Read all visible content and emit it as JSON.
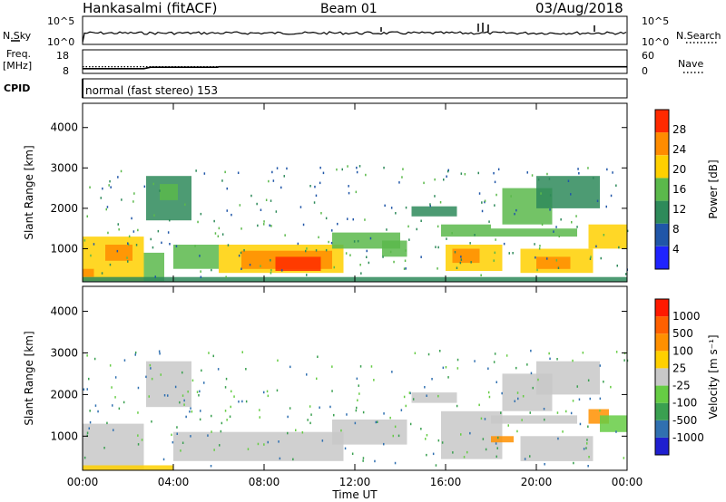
{
  "header": {
    "station": "Hankasalmi (fitACF)",
    "beam": "Beam 01",
    "date": "03/Aug/2018"
  },
  "side_labels": {
    "nsky": "N.Sky",
    "freq": "Freq.",
    "freq_unit": "[MHz]",
    "cpid": "CPID",
    "nsearch": "N.Search",
    "nave": "Nave"
  },
  "cpid_text": "normal (fast stereo) 153",
  "chart_data": [
    {
      "type": "line",
      "name": "noise",
      "y_tick_labels": [
        "10^5",
        "10^0"
      ],
      "right_tick_labels": [
        "10^5",
        "10^0"
      ],
      "series": [
        {
          "label": "N.Sky",
          "style": "solid"
        },
        {
          "label": "N.Search",
          "style": "dotted"
        }
      ]
    },
    {
      "type": "line",
      "name": "freq-nave",
      "left_tick_labels": [
        "18",
        "8"
      ],
      "right_tick_labels": [
        "60",
        "0"
      ],
      "x": [
        0,
        2.7,
        3.0,
        5.95,
        6.0,
        17.95,
        18.0,
        24
      ],
      "freq_mhz": [
        10.0,
        10.0,
        10.6,
        10.6,
        10.8,
        10.8,
        10.8,
        10.8
      ],
      "nave": [
        17,
        17,
        17,
        17,
        17,
        17,
        17,
        17
      ]
    },
    {
      "type": "heatmap",
      "name": "power",
      "ylabel": "Slant Range [km]",
      "ylim": [
        180,
        4600
      ],
      "yticks": [
        "1000",
        "2000",
        "3000",
        "4000"
      ],
      "xlim": [
        0,
        24
      ],
      "colorbar_label": "Power [dB]",
      "colorbar_ticks": [
        "4",
        "8",
        "12",
        "16",
        "20",
        "24",
        "28"
      ],
      "colors": [
        "#1f23ff",
        "#2056a8",
        "#2e8a5a",
        "#5bb94b",
        "#ffd000",
        "#ff8c00",
        "#ff2a00"
      ],
      "regions": [
        {
          "x0": 0.0,
          "x1": 2.7,
          "y0": 200,
          "y1": 1300,
          "level": 4
        },
        {
          "x0": 1.0,
          "x1": 2.2,
          "y0": 700,
          "y1": 1100,
          "level": 5
        },
        {
          "x0": 0.0,
          "x1": 0.5,
          "y0": 300,
          "y1": 500,
          "level": 5
        },
        {
          "x0": 2.7,
          "x1": 3.6,
          "y0": 200,
          "y1": 900,
          "level": 3
        },
        {
          "x0": 2.8,
          "x1": 4.8,
          "y0": 1700,
          "y1": 2800,
          "level": 2
        },
        {
          "x0": 3.4,
          "x1": 4.2,
          "y0": 2200,
          "y1": 2600,
          "level": 3
        },
        {
          "x0": 4.0,
          "x1": 6.0,
          "y0": 500,
          "y1": 1100,
          "level": 3
        },
        {
          "x0": 6.0,
          "x1": 11.5,
          "y0": 400,
          "y1": 1100,
          "level": 4
        },
        {
          "x0": 7.0,
          "x1": 11.0,
          "y0": 500,
          "y1": 950,
          "level": 5
        },
        {
          "x0": 8.5,
          "x1": 10.5,
          "y0": 450,
          "y1": 800,
          "level": 6
        },
        {
          "x0": 11.0,
          "x1": 14.0,
          "y0": 1000,
          "y1": 1400,
          "level": 3
        },
        {
          "x0": 13.2,
          "x1": 14.3,
          "y0": 800,
          "y1": 1200,
          "level": 3
        },
        {
          "x0": 14.5,
          "x1": 16.5,
          "y0": 1800,
          "y1": 2050,
          "level": 2
        },
        {
          "x0": 15.8,
          "x1": 18.0,
          "y0": 1300,
          "y1": 1600,
          "level": 3
        },
        {
          "x0": 16.0,
          "x1": 18.5,
          "y0": 450,
          "y1": 1100,
          "level": 4
        },
        {
          "x0": 16.3,
          "x1": 17.5,
          "y0": 650,
          "y1": 1000,
          "level": 5
        },
        {
          "x0": 18.0,
          "x1": 21.8,
          "y0": 1300,
          "y1": 1500,
          "level": 3
        },
        {
          "x0": 18.5,
          "x1": 20.7,
          "y0": 1600,
          "y1": 2500,
          "level": 3
        },
        {
          "x0": 20.0,
          "x1": 22.8,
          "y0": 2000,
          "y1": 2800,
          "level": 2
        },
        {
          "x0": 19.3,
          "x1": 22.5,
          "y0": 400,
          "y1": 1000,
          "level": 4
        },
        {
          "x0": 20.0,
          "x1": 21.5,
          "y0": 500,
          "y1": 800,
          "level": 5
        },
        {
          "x0": 22.3,
          "x1": 24.0,
          "y0": 1000,
          "y1": 1600,
          "level": 4
        },
        {
          "x0": 0.0,
          "x1": 24.0,
          "y0": 180,
          "y1": 300,
          "level": 2
        }
      ]
    },
    {
      "type": "heatmap",
      "name": "velocity",
      "ylabel": "Slant Range [km]",
      "ylim": [
        180,
        4600
      ],
      "yticks": [
        "1000",
        "2000",
        "3000",
        "4000"
      ],
      "xlim": [
        0,
        24
      ],
      "xticks": [
        "00:00",
        "04:00",
        "08:00",
        "12:00",
        "16:00",
        "20:00",
        "00:00"
      ],
      "xlabel": "Time UT",
      "colorbar_label": "Velocity [m s⁻¹]",
      "colorbar_ticks": [
        "1000",
        "500",
        "100",
        "25",
        "-25",
        "-100",
        "-500",
        "-1000"
      ],
      "colors": [
        "#1f1fd0",
        "#3070b0",
        "#3aa050",
        "#66cc44",
        "#c8c8c8",
        "#ffd000",
        "#ff9000",
        "#ff6000",
        "#ff1a00"
      ],
      "regions": [
        {
          "x0": 0.0,
          "x1": 2.7,
          "y0": 200,
          "y1": 1300,
          "level": 4
        },
        {
          "x0": 2.8,
          "x1": 4.8,
          "y0": 1700,
          "y1": 2800,
          "level": 4
        },
        {
          "x0": 4.0,
          "x1": 11.5,
          "y0": 400,
          "y1": 1100,
          "level": 4
        },
        {
          "x0": 11.0,
          "x1": 14.3,
          "y0": 800,
          "y1": 1400,
          "level": 4
        },
        {
          "x0": 14.5,
          "x1": 16.5,
          "y0": 1800,
          "y1": 2050,
          "level": 4
        },
        {
          "x0": 15.8,
          "x1": 18.5,
          "y0": 450,
          "y1": 1600,
          "level": 4
        },
        {
          "x0": 18.0,
          "x1": 21.8,
          "y0": 1300,
          "y1": 1500,
          "level": 4
        },
        {
          "x0": 18.5,
          "x1": 20.7,
          "y0": 1600,
          "y1": 2500,
          "level": 4
        },
        {
          "x0": 20.0,
          "x1": 22.8,
          "y0": 2000,
          "y1": 2800,
          "level": 4
        },
        {
          "x0": 19.3,
          "x1": 22.5,
          "y0": 400,
          "y1": 1000,
          "level": 4
        },
        {
          "x0": 18.0,
          "x1": 19.0,
          "y0": 850,
          "y1": 1000,
          "level": 6
        },
        {
          "x0": 22.3,
          "x1": 23.2,
          "y0": 1300,
          "y1": 1650,
          "level": 6
        },
        {
          "x0": 22.8,
          "x1": 24.0,
          "y0": 1100,
          "y1": 1500,
          "level": 3
        },
        {
          "x0": 0.0,
          "x1": 4.0,
          "y0": 180,
          "y1": 300,
          "level": 5
        }
      ]
    }
  ]
}
